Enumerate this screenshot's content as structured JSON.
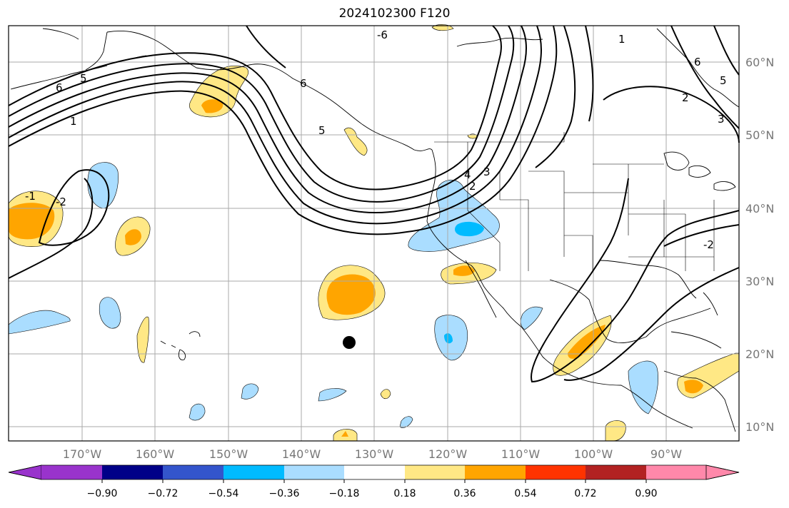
{
  "title": "2024102300 F120",
  "map": {
    "lon_labels": [
      "170°W",
      "160°W",
      "150°W",
      "140°W",
      "130°W",
      "120°W",
      "110°W",
      "100°W",
      "90°W"
    ],
    "lat_labels": [
      "60°N",
      "50°N",
      "40°N",
      "30°N",
      "20°N",
      "10°N"
    ],
    "contour_labels": [
      "6",
      "5",
      "1",
      "-1",
      "-2",
      "6",
      "5",
      "-6",
      "4",
      "3",
      "2",
      "1",
      "2",
      "3",
      "5",
      "6",
      "-2"
    ],
    "marker": "storm-center-dot"
  },
  "colorbar": {
    "ticks": [
      "−0.90",
      "−0.72",
      "−0.54",
      "−0.36",
      "−0.18",
      "0.18",
      "0.36",
      "0.54",
      "0.72",
      "0.90"
    ],
    "colors": [
      "#9933cc",
      "#000088",
      "#3355cc",
      "#00bbff",
      "#aaddff",
      "#ffffff",
      "#ffe885",
      "#ffa500",
      "#ff3300",
      "#b22222",
      "#ff88aa"
    ]
  },
  "colors": {
    "neg_light": "#aaddff",
    "neg_mid": "#00bbff",
    "pos_light": "#ffe885",
    "pos_mid": "#ffa500",
    "grid": "#aaaaaa"
  }
}
